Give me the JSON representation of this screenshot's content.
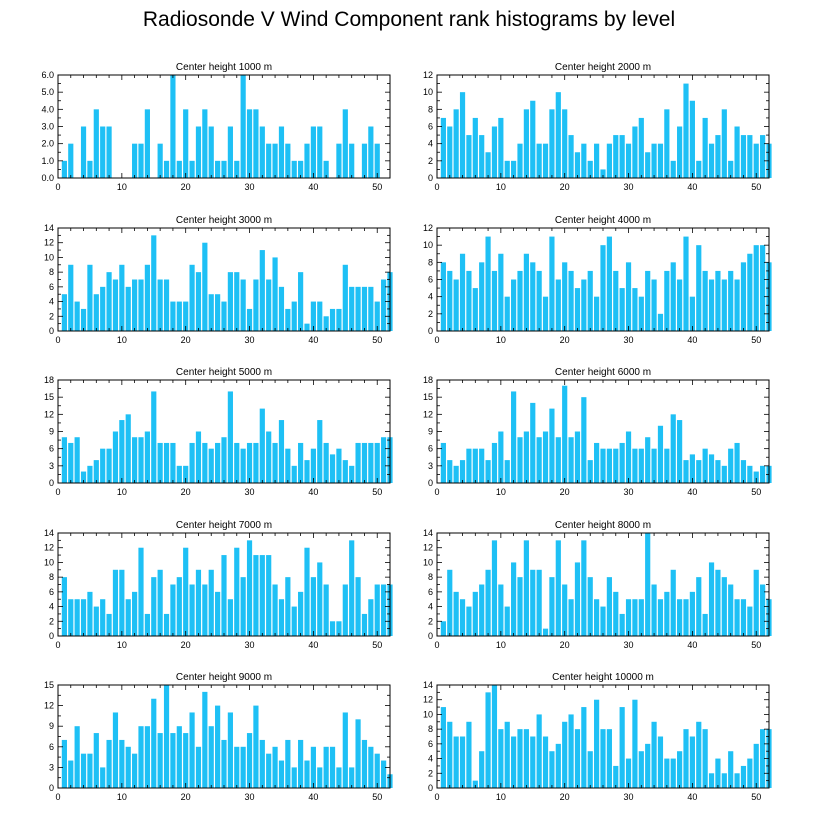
{
  "title": "Radiosonde V Wind Component rank histograms by level",
  "bar_color": "#1ec0f5",
  "chart_data": [
    {
      "type": "bar",
      "title": "Center height 1000 m",
      "xlim": [
        0,
        52
      ],
      "xticks": [
        0,
        10,
        20,
        30,
        40,
        50
      ],
      "ylim": [
        0,
        6
      ],
      "yticks": [
        "0.0",
        "1.0",
        "2.0",
        "3.0",
        "4.0",
        "5.0",
        "6.0"
      ],
      "values": [
        1,
        2,
        0,
        3,
        1,
        4,
        3,
        3,
        0,
        0,
        0,
        2,
        2,
        4,
        0,
        2,
        1,
        6,
        1,
        4,
        1,
        3,
        4,
        3,
        1,
        1,
        3,
        1,
        6,
        4,
        4,
        3,
        2,
        2,
        3,
        2,
        1,
        1,
        2,
        3,
        3,
        1,
        0,
        2,
        4,
        2,
        0,
        2,
        3,
        2,
        0
      ]
    },
    {
      "type": "bar",
      "title": "Center height 2000 m",
      "xlim": [
        0,
        52
      ],
      "xticks": [
        0,
        10,
        20,
        30,
        40,
        50
      ],
      "ylim": [
        0,
        12
      ],
      "yticks": [
        "0",
        "2",
        "4",
        "6",
        "8",
        "10",
        "12"
      ],
      "values": [
        7,
        6,
        8,
        10,
        5,
        7,
        5,
        3,
        6,
        7,
        2,
        2,
        4,
        8,
        9,
        4,
        4,
        8,
        10,
        8,
        5,
        3,
        4,
        2,
        4,
        1,
        4,
        5,
        5,
        4,
        6,
        7,
        3,
        4,
        4,
        8,
        2,
        6,
        11,
        9,
        2,
        7,
        4,
        5,
        8,
        2,
        6,
        5,
        5,
        4,
        5,
        4
      ]
    },
    {
      "type": "bar",
      "title": "Center height 3000 m",
      "xlim": [
        0,
        52
      ],
      "xticks": [
        0,
        10,
        20,
        30,
        40,
        50
      ],
      "ylim": [
        0,
        14
      ],
      "yticks": [
        "0",
        "2",
        "4",
        "6",
        "8",
        "10",
        "12",
        "14"
      ],
      "values": [
        5,
        9,
        4,
        3,
        9,
        5,
        6,
        8,
        7,
        9,
        6,
        7,
        7,
        9,
        13,
        7,
        7,
        4,
        4,
        4,
        9,
        8,
        12,
        5,
        5,
        4,
        8,
        8,
        7,
        3,
        7,
        11,
        7,
        10,
        6,
        3,
        4,
        8,
        1,
        4,
        4,
        2,
        3,
        3,
        9,
        6,
        6,
        6,
        6,
        4,
        7,
        8
      ]
    },
    {
      "type": "bar",
      "title": "Center height 4000 m",
      "xlim": [
        0,
        52
      ],
      "xticks": [
        0,
        10,
        20,
        30,
        40,
        50
      ],
      "ylim": [
        0,
        12
      ],
      "yticks": [
        "0",
        "2",
        "4",
        "6",
        "8",
        "10",
        "12"
      ],
      "values": [
        8,
        7,
        6,
        9,
        7,
        5,
        8,
        11,
        7,
        9,
        4,
        6,
        7,
        9,
        8,
        7,
        4,
        11,
        6,
        8,
        7,
        5,
        6,
        7,
        4,
        10,
        11,
        7,
        5,
        8,
        5,
        4,
        7,
        6,
        2,
        7,
        8,
        6,
        11,
        4,
        10,
        7,
        6,
        7,
        6,
        7,
        6,
        8,
        9,
        10,
        10,
        8
      ]
    },
    {
      "type": "bar",
      "title": "Center height 5000 m",
      "xlim": [
        0,
        52
      ],
      "xticks": [
        0,
        10,
        20,
        30,
        40,
        50
      ],
      "ylim": [
        0,
        18
      ],
      "yticks": [
        "0",
        "3",
        "6",
        "9",
        "12",
        "15",
        "18"
      ],
      "values": [
        8,
        7,
        8,
        2,
        3,
        4,
        6,
        6,
        9,
        11,
        12,
        8,
        8,
        9,
        16,
        7,
        7,
        7,
        3,
        3,
        7,
        9,
        7,
        6,
        7,
        8,
        16,
        7,
        6,
        7,
        7,
        13,
        9,
        7,
        11,
        6,
        3,
        7,
        4,
        6,
        11,
        7,
        5,
        6,
        4,
        3,
        7,
        7,
        7,
        7,
        8,
        8
      ]
    },
    {
      "type": "bar",
      "title": "Center height 6000 m",
      "xlim": [
        0,
        52
      ],
      "xticks": [
        0,
        10,
        20,
        30,
        40,
        50
      ],
      "ylim": [
        0,
        18
      ],
      "yticks": [
        "0",
        "3",
        "6",
        "9",
        "12",
        "15",
        "18"
      ],
      "values": [
        7,
        4,
        3,
        4,
        6,
        6,
        6,
        4,
        7,
        9,
        4,
        16,
        8,
        9,
        14,
        8,
        9,
        13,
        8,
        17,
        8,
        9,
        15,
        4,
        7,
        6,
        6,
        6,
        7,
        9,
        6,
        6,
        8,
        6,
        10,
        6,
        12,
        11,
        4,
        5,
        4,
        6,
        5,
        4,
        3,
        6,
        7,
        4,
        3,
        2,
        3,
        3
      ]
    },
    {
      "type": "bar",
      "title": "Center height 7000 m",
      "xlim": [
        0,
        52
      ],
      "xticks": [
        0,
        10,
        20,
        30,
        40,
        50
      ],
      "ylim": [
        0,
        14
      ],
      "yticks": [
        "0",
        "2",
        "4",
        "6",
        "8",
        "10",
        "12",
        "14"
      ],
      "values": [
        8,
        5,
        5,
        5,
        6,
        4,
        5,
        3,
        9,
        9,
        5,
        6,
        12,
        3,
        8,
        9,
        3,
        7,
        8,
        12,
        7,
        9,
        7,
        9,
        6,
        11,
        5,
        12,
        8,
        13,
        11,
        11,
        11,
        7,
        5,
        8,
        4,
        6,
        12,
        8,
        10,
        7,
        2,
        2,
        7,
        13,
        8,
        3,
        5,
        7,
        7,
        7
      ]
    },
    {
      "type": "bar",
      "title": "Center height 8000 m",
      "xlim": [
        0,
        52
      ],
      "xticks": [
        0,
        10,
        20,
        30,
        40,
        50
      ],
      "ylim": [
        0,
        14
      ],
      "yticks": [
        "0",
        "2",
        "4",
        "6",
        "8",
        "10",
        "12",
        "14"
      ],
      "values": [
        2,
        9,
        6,
        5,
        4,
        6,
        7,
        9,
        13,
        7,
        4,
        10,
        8,
        13,
        9,
        9,
        1,
        8,
        13,
        7,
        5,
        10,
        13,
        8,
        5,
        4,
        8,
        6,
        3,
        5,
        5,
        5,
        14,
        7,
        5,
        6,
        9,
        5,
        5,
        6,
        8,
        3,
        10,
        9,
        8,
        7,
        5,
        5,
        4,
        9,
        7,
        5
      ]
    },
    {
      "type": "bar",
      "title": "Center height 9000 m",
      "xlim": [
        0,
        52
      ],
      "xticks": [
        0,
        10,
        20,
        30,
        40,
        50
      ],
      "ylim": [
        0,
        15
      ],
      "yticks": [
        "0",
        "3",
        "6",
        "9",
        "12",
        "15"
      ],
      "values": [
        7,
        4,
        9,
        5,
        5,
        8,
        3,
        7,
        11,
        7,
        6,
        5,
        9,
        9,
        13,
        8,
        15,
        8,
        9,
        8,
        11,
        6,
        14,
        9,
        12,
        7,
        11,
        6,
        6,
        8,
        12,
        7,
        5,
        6,
        4,
        7,
        3,
        7,
        4,
        6,
        3,
        6,
        6,
        3,
        11,
        3,
        10,
        7,
        6,
        5,
        4,
        2
      ]
    },
    {
      "type": "bar",
      "title": "Center height 10000 m",
      "xlim": [
        0,
        52
      ],
      "xticks": [
        0,
        10,
        20,
        30,
        40,
        50
      ],
      "ylim": [
        0,
        14
      ],
      "yticks": [
        "0",
        "2",
        "4",
        "6",
        "8",
        "10",
        "12",
        "14"
      ],
      "values": [
        11,
        9,
        7,
        7,
        9,
        1,
        5,
        13,
        14,
        8,
        9,
        7,
        8,
        8,
        7,
        10,
        7,
        5,
        6,
        9,
        10,
        8,
        11,
        5,
        12,
        8,
        8,
        3,
        11,
        4,
        12,
        5,
        6,
        9,
        7,
        4,
        4,
        5,
        8,
        7,
        9,
        8,
        2,
        4,
        2,
        5,
        2,
        3,
        4,
        6,
        8,
        8
      ]
    }
  ]
}
